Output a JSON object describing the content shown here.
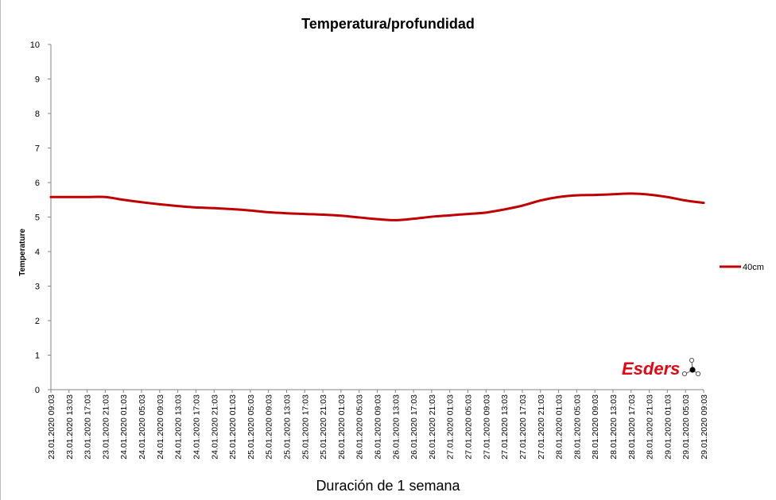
{
  "chart_data": {
    "type": "line",
    "title": "Temperatura/profundidad",
    "xlabel": "Duración de 1 semana",
    "ylabel": "Temperature",
    "ylim": [
      0,
      10
    ],
    "yticks": [
      "0",
      "1",
      "2",
      "3",
      "4",
      "5",
      "6",
      "7",
      "8",
      "9",
      "10"
    ],
    "grid": false,
    "legend_position": "right",
    "categories": [
      "23.01.2020 09:03",
      "23.01.2020 13:03",
      "23.01.2020 17:03",
      "23.01.2020 21:03",
      "24.01.2020 01:03",
      "24.01.2020 05:03",
      "24.01.2020 09:03",
      "24.01.2020 13:03",
      "24.01.2020 17:03",
      "24.01.2020 21:03",
      "25.01.2020 01:03",
      "25.01.2020 05:03",
      "25.01.2020 09:03",
      "25.01.2020 13:03",
      "25.01.2020 17:03",
      "25.01.2020 21:03",
      "26.01.2020 01:03",
      "26.01.2020 05:03",
      "26.01.2020 09:03",
      "26.01.2020 13:03",
      "26.01.2020 17:03",
      "26.01.2020 21:03",
      "27.01.2020 01:03",
      "27.01.2020 05:03",
      "27.01.2020 09:03",
      "27.01.2020 13:03",
      "27.01.2020 17:03",
      "27.01.2020 21:03",
      "28.01.2020 01:03",
      "28.01.2020 05:03",
      "28.01.2020 09:03",
      "28.01.2020 13:03",
      "28.01.2020 17:03",
      "28.01.2020 21:03",
      "29.01.2020 01:03",
      "29.01.2020 05:03",
      "29.01.2020 09:03"
    ],
    "series": [
      {
        "name": "40cm",
        "color": "#c00000",
        "values": [
          5.58,
          5.58,
          5.58,
          5.58,
          5.5,
          5.43,
          5.37,
          5.32,
          5.28,
          5.26,
          5.23,
          5.19,
          5.14,
          5.11,
          5.09,
          5.07,
          5.04,
          4.99,
          4.94,
          4.91,
          4.95,
          5.01,
          5.05,
          5.09,
          5.13,
          5.22,
          5.33,
          5.48,
          5.58,
          5.63,
          5.64,
          5.66,
          5.68,
          5.65,
          5.58,
          5.48,
          5.41
        ]
      }
    ]
  },
  "logo": {
    "text": "Esders",
    "color": "#e30613",
    "icon": "molecule-icon"
  }
}
